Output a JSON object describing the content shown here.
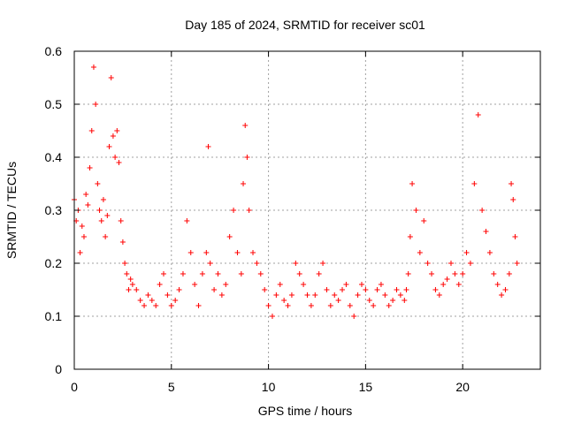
{
  "chart_data": {
    "type": "scatter",
    "title": "Day 185 of 2024, SRMTID for receiver sc01",
    "xlabel": "GPS time / hours",
    "ylabel": "SRMTID / TECUs",
    "xlim": [
      0,
      24
    ],
    "ylim": [
      0,
      0.6
    ],
    "xticks": [
      0,
      5,
      10,
      15,
      20
    ],
    "yticks": [
      0,
      0.1,
      0.2,
      0.3,
      0.4,
      0.5,
      0.6
    ],
    "xtick_labels": [
      "0",
      "5",
      "10",
      "15",
      "20"
    ],
    "ytick_labels": [
      "0",
      "0.1",
      "0.2",
      "0.3",
      "0.4",
      "0.5",
      "0.6"
    ],
    "grid": true,
    "marker": "+",
    "color": "#ff0000",
    "series": [
      {
        "name": "SRMTID",
        "x": [
          0.0,
          0.1,
          0.2,
          0.3,
          0.4,
          0.5,
          0.6,
          0.7,
          0.8,
          0.9,
          1.0,
          1.1,
          1.2,
          1.3,
          1.4,
          1.5,
          1.6,
          1.7,
          1.8,
          1.9,
          2.0,
          2.1,
          2.2,
          2.3,
          2.4,
          2.5,
          2.6,
          2.7,
          2.8,
          2.9,
          3.0,
          3.2,
          3.4,
          3.6,
          3.8,
          4.0,
          4.2,
          4.4,
          4.6,
          4.8,
          5.0,
          5.2,
          5.4,
          5.6,
          5.8,
          6.0,
          6.2,
          6.4,
          6.6,
          6.8,
          6.9,
          7.0,
          7.2,
          7.4,
          7.6,
          7.8,
          8.0,
          8.2,
          8.4,
          8.6,
          8.7,
          8.8,
          8.9,
          9.0,
          9.2,
          9.4,
          9.6,
          9.8,
          10.0,
          10.2,
          10.4,
          10.6,
          10.8,
          11.0,
          11.2,
          11.4,
          11.6,
          11.8,
          12.0,
          12.2,
          12.4,
          12.6,
          12.8,
          13.0,
          13.2,
          13.4,
          13.6,
          13.8,
          14.0,
          14.2,
          14.4,
          14.6,
          14.8,
          15.0,
          15.2,
          15.4,
          15.6,
          15.8,
          16.0,
          16.2,
          16.4,
          16.6,
          16.8,
          17.0,
          17.1,
          17.2,
          17.3,
          17.4,
          17.6,
          17.8,
          18.0,
          18.2,
          18.4,
          18.6,
          18.8,
          19.0,
          19.2,
          19.4,
          19.6,
          19.8,
          20.0,
          20.2,
          20.4,
          20.6,
          20.8,
          21.0,
          21.2,
          21.4,
          21.6,
          21.8,
          22.0,
          22.2,
          22.4,
          22.5,
          22.6,
          22.7,
          22.8
        ],
        "y": [
          0.32,
          0.28,
          0.3,
          0.22,
          0.27,
          0.25,
          0.33,
          0.31,
          0.38,
          0.45,
          0.57,
          0.5,
          0.35,
          0.3,
          0.28,
          0.32,
          0.25,
          0.29,
          0.42,
          0.55,
          0.44,
          0.4,
          0.45,
          0.39,
          0.28,
          0.24,
          0.2,
          0.18,
          0.15,
          0.17,
          0.16,
          0.15,
          0.13,
          0.12,
          0.14,
          0.13,
          0.12,
          0.16,
          0.18,
          0.14,
          0.12,
          0.13,
          0.15,
          0.18,
          0.28,
          0.22,
          0.16,
          0.12,
          0.18,
          0.22,
          0.42,
          0.2,
          0.15,
          0.18,
          0.14,
          0.16,
          0.25,
          0.3,
          0.22,
          0.18,
          0.35,
          0.46,
          0.4,
          0.3,
          0.22,
          0.2,
          0.18,
          0.15,
          0.12,
          0.1,
          0.14,
          0.16,
          0.13,
          0.12,
          0.14,
          0.2,
          0.18,
          0.16,
          0.14,
          0.12,
          0.14,
          0.18,
          0.2,
          0.15,
          0.12,
          0.14,
          0.13,
          0.15,
          0.16,
          0.12,
          0.1,
          0.14,
          0.16,
          0.15,
          0.13,
          0.12,
          0.15,
          0.16,
          0.14,
          0.12,
          0.13,
          0.15,
          0.14,
          0.13,
          0.15,
          0.18,
          0.25,
          0.35,
          0.3,
          0.22,
          0.28,
          0.2,
          0.18,
          0.15,
          0.14,
          0.16,
          0.17,
          0.2,
          0.18,
          0.16,
          0.18,
          0.22,
          0.2,
          0.35,
          0.48,
          0.3,
          0.26,
          0.22,
          0.18,
          0.16,
          0.14,
          0.15,
          0.18,
          0.35,
          0.32,
          0.25,
          0.2
        ]
      }
    ]
  }
}
